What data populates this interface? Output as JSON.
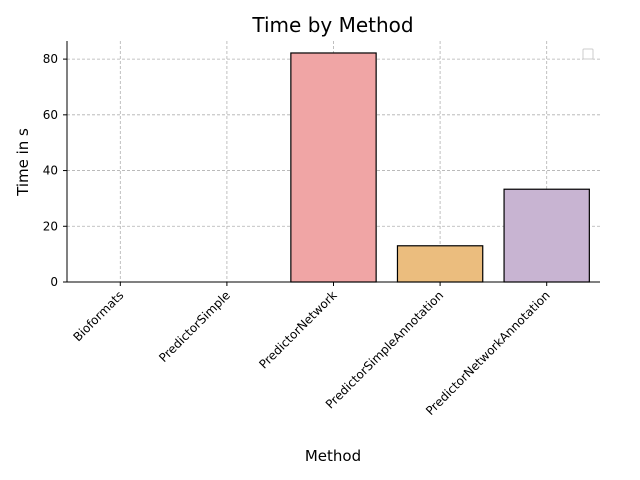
{
  "chart_data": {
    "type": "bar",
    "title": "Time by Method",
    "xlabel": "Method",
    "ylabel": "Time in s",
    "categories": [
      "Bioformats",
      "PredictorSimple",
      "PredictorNetwork",
      "PredictorSimpleAnnotation",
      "PredictorNetworkAnnotation"
    ],
    "values": [
      0,
      0,
      82.2,
      13.0,
      33.3
    ],
    "colors": [
      "#f0a5a5",
      "#f0a5a5",
      "#f0a5a5",
      "#ebbd7e",
      "#c8b4d2"
    ],
    "ylim": [
      0,
      86.5
    ],
    "yticks": [
      0,
      20,
      40,
      60,
      80
    ],
    "grid": true,
    "legend": "top-right (empty)",
    "xtick_rotation": 45
  }
}
